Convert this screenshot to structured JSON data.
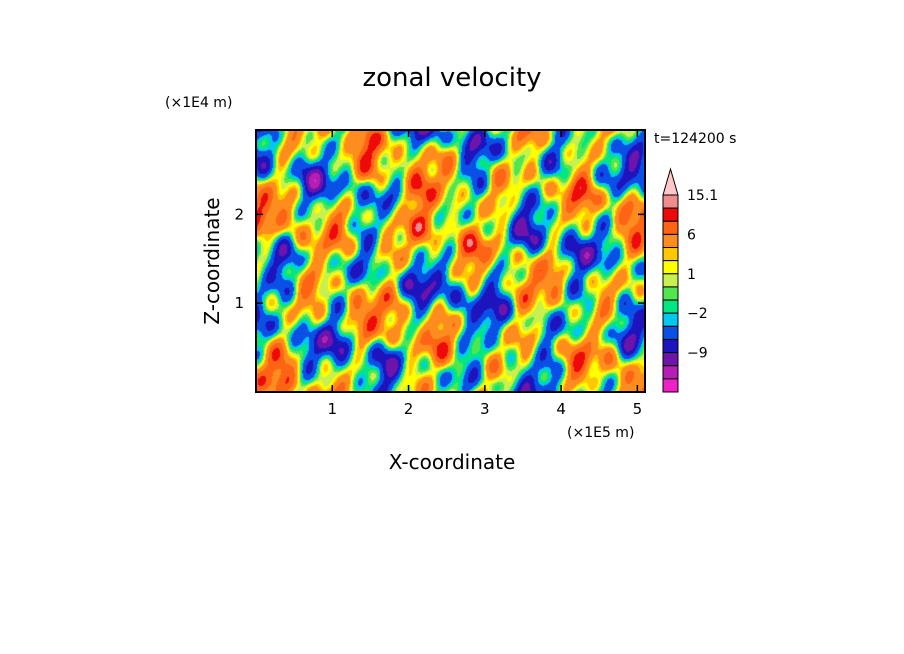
{
  "chart_data": {
    "type": "heatmap",
    "title": "zonal velocity",
    "xlabel": "X-coordinate",
    "ylabel": "Z-coordinate",
    "x_unit": "(×1E5 m)",
    "y_unit": "(×1E4 m)",
    "time_label": "t=124200 s",
    "x_range": [
      0,
      5.1
    ],
    "y_range": [
      0,
      2.95
    ],
    "x_ticks": [
      1,
      2,
      3,
      4,
      5
    ],
    "y_ticks": [
      1,
      2
    ],
    "colorbar": {
      "levels": [
        -15,
        -12,
        -9,
        -6,
        -3,
        -2,
        -1,
        0,
        1,
        2,
        3,
        6,
        9,
        12,
        15.1
      ],
      "colors": [
        "#f020c8",
        "#b41eb4",
        "#6e14aa",
        "#1e14be",
        "#0a50e6",
        "#00c8f0",
        "#00e682",
        "#50e650",
        "#c8f050",
        "#ffff00",
        "#ffc800",
        "#ff8c1e",
        "#ff6414",
        "#ee0a0a",
        "#f08c8c",
        "#ffc8c8"
      ],
      "labels": [
        {
          "value": 15.1,
          "text": "15.1"
        },
        {
          "value": 6,
          "text": "6"
        },
        {
          "value": 1,
          "text": "1"
        },
        {
          "value": -2,
          "text": "−2"
        },
        {
          "value": -9,
          "text": "−9"
        }
      ],
      "extend": "max"
    }
  }
}
